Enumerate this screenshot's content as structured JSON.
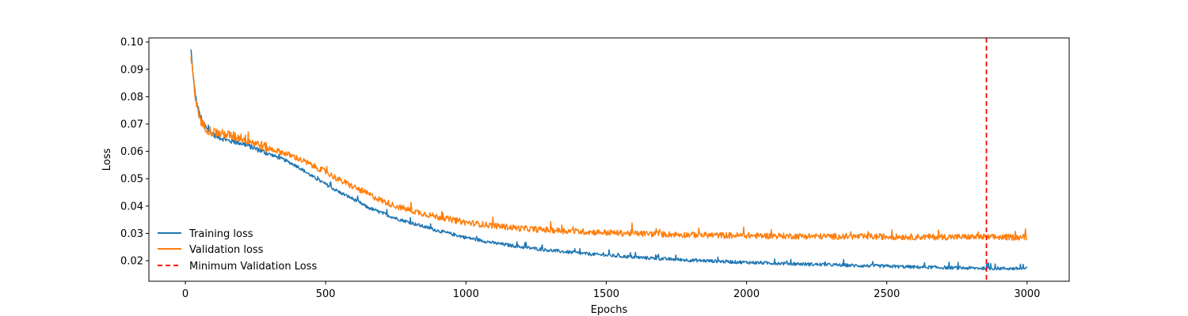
{
  "chart_data": {
    "type": "line",
    "title": "",
    "xlabel": "Epochs",
    "ylabel": "Loss",
    "xlim": [
      -130,
      3150
    ],
    "ylim": [
      0.0125,
      0.1015
    ],
    "xticks": [
      0,
      500,
      1000,
      1500,
      2000,
      2500,
      3000
    ],
    "yticks": [
      0.02,
      0.03,
      0.04,
      0.05,
      0.06,
      0.07,
      0.08,
      0.09,
      0.1
    ],
    "xtick_labels": [
      "0",
      "500",
      "1000",
      "1500",
      "2000",
      "2500",
      "3000"
    ],
    "ytick_labels": [
      "0.02",
      "0.03",
      "0.04",
      "0.05",
      "0.06",
      "0.07",
      "0.08",
      "0.09",
      "0.10"
    ],
    "grid": false,
    "legend_position": "lower-left",
    "series": [
      {
        "name": "Training loss",
        "color": "#1f77b4",
        "x": [
          20,
          30,
          40,
          50,
          60,
          80,
          100,
          150,
          200,
          250,
          300,
          350,
          400,
          450,
          500,
          550,
          600,
          650,
          700,
          750,
          800,
          900,
          1000,
          1100,
          1200,
          1300,
          1400,
          1500,
          1600,
          1700,
          1800,
          1900,
          2000,
          2100,
          2200,
          2300,
          2400,
          2500,
          2600,
          2700,
          2800,
          2900,
          3000
        ],
        "y": [
          0.097,
          0.085,
          0.078,
          0.074,
          0.071,
          0.068,
          0.066,
          0.064,
          0.063,
          0.061,
          0.059,
          0.057,
          0.0545,
          0.051,
          0.048,
          0.045,
          0.0425,
          0.0395,
          0.0375,
          0.0355,
          0.034,
          0.031,
          0.0285,
          0.0265,
          0.025,
          0.0238,
          0.0228,
          0.022,
          0.0213,
          0.0207,
          0.0202,
          0.0198,
          0.0194,
          0.0191,
          0.0188,
          0.0185,
          0.0182,
          0.018,
          0.0177,
          0.0175,
          0.0173,
          0.0172,
          0.0171
        ],
        "noise": 0.0006
      },
      {
        "name": "Validation loss",
        "color": "#ff7f0e",
        "x": [
          20,
          30,
          40,
          50,
          60,
          80,
          100,
          150,
          200,
          250,
          300,
          350,
          400,
          450,
          500,
          550,
          600,
          650,
          700,
          750,
          800,
          900,
          1000,
          1100,
          1200,
          1300,
          1400,
          1500,
          1600,
          1700,
          1800,
          1900,
          2000,
          2100,
          2200,
          2300,
          2400,
          2500,
          2600,
          2700,
          2800,
          2900,
          3000
        ],
        "y": [
          0.095,
          0.084,
          0.077,
          0.073,
          0.07,
          0.068,
          0.067,
          0.066,
          0.065,
          0.063,
          0.061,
          0.0595,
          0.0575,
          0.055,
          0.0525,
          0.0495,
          0.047,
          0.0445,
          0.042,
          0.04,
          0.0385,
          0.036,
          0.034,
          0.0328,
          0.0318,
          0.0312,
          0.0307,
          0.0303,
          0.03,
          0.0297,
          0.0295,
          0.0293,
          0.0292,
          0.0291,
          0.029,
          0.0289,
          0.0288,
          0.0288,
          0.0287,
          0.0287,
          0.0287,
          0.0286,
          0.0286
        ],
        "noise": 0.0011
      }
    ],
    "vline": {
      "name": "Minimum Validation Loss",
      "x": 2855,
      "color": "#ff0000",
      "style": "dashed"
    }
  }
}
